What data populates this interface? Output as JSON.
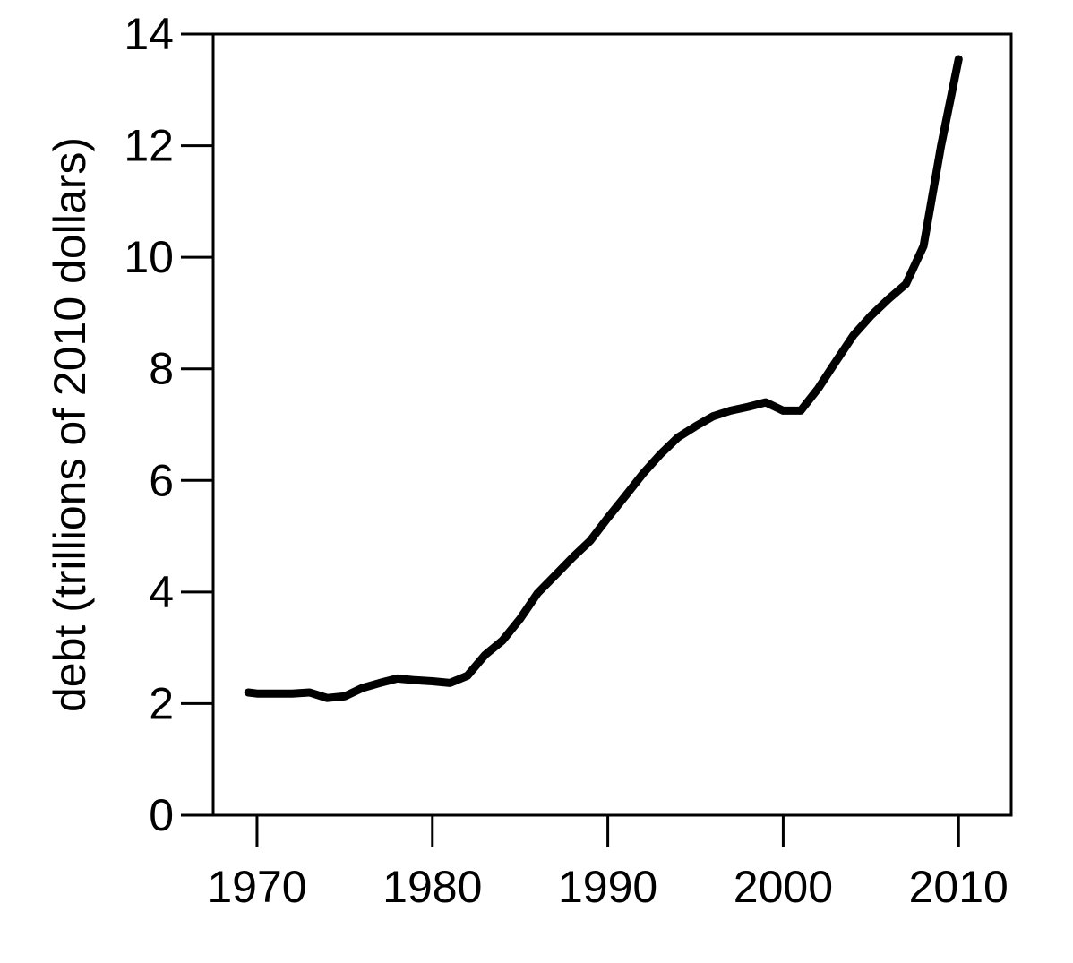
{
  "chart_data": {
    "type": "line",
    "title": "",
    "xlabel": "",
    "ylabel": "debt (trillions of 2010 dollars)",
    "xlim": [
      1967.5,
      2013
    ],
    "ylim": [
      0,
      14
    ],
    "xticks": [
      1970,
      1980,
      1990,
      2000,
      2010
    ],
    "yticks": [
      0,
      2,
      4,
      6,
      8,
      10,
      12,
      14
    ],
    "grid": false,
    "legend": "none",
    "line_color": "#000000",
    "series": [
      {
        "x": [
          1969.5,
          1970,
          1971,
          1972,
          1973,
          1974,
          1975,
          1976,
          1977,
          1978,
          1979,
          1980,
          1981,
          1982,
          1983,
          1984,
          1985,
          1986,
          1987,
          1988,
          1989,
          1990,
          1991,
          1992,
          1993,
          1994,
          1995,
          1996,
          1997,
          1998,
          1999,
          2000,
          2001,
          2002,
          2003,
          2004,
          2005,
          2006,
          2007,
          2008,
          2009,
          2010
        ],
        "y": [
          2.2,
          2.18,
          2.18,
          2.18,
          2.2,
          2.1,
          2.13,
          2.28,
          2.37,
          2.45,
          2.42,
          2.4,
          2.37,
          2.5,
          2.87,
          3.13,
          3.52,
          3.98,
          4.3,
          4.62,
          4.92,
          5.33,
          5.72,
          6.12,
          6.47,
          6.77,
          6.97,
          7.15,
          7.25,
          7.32,
          7.4,
          7.25,
          7.25,
          7.65,
          8.13,
          8.6,
          8.95,
          9.25,
          9.52,
          10.2,
          12.0,
          13.55
        ]
      }
    ]
  }
}
